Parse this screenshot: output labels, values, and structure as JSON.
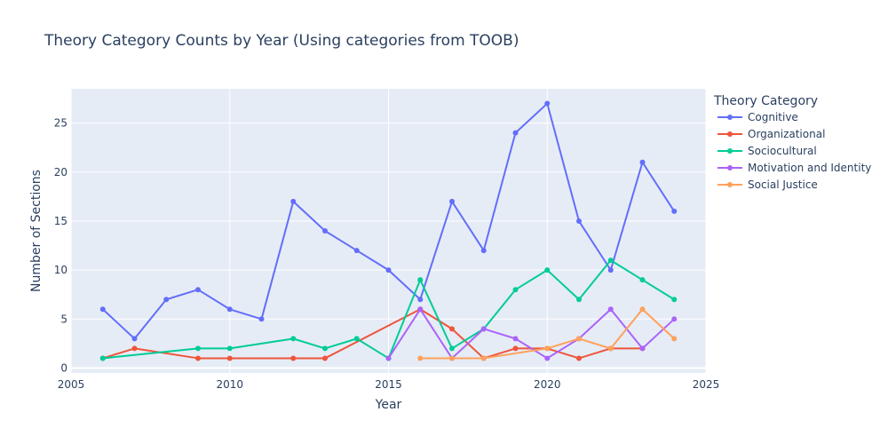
{
  "chart_data": {
    "type": "line",
    "title": "Theory Category Counts by Year (Using categories from TOOB)",
    "xlabel": "Year",
    "ylabel": "Number of Sections",
    "xlim": [
      2005,
      2025
    ],
    "ylim": [
      -0.5,
      28.5
    ],
    "xticks": [
      2005,
      2010,
      2015,
      2020,
      2025
    ],
    "yticks": [
      0,
      5,
      10,
      15,
      20,
      25
    ],
    "grid": true,
    "legend_title": "Theory Category",
    "legend_position": "right",
    "series": [
      {
        "name": "Cognitive",
        "color": "#636efa",
        "points": [
          [
            2006,
            6
          ],
          [
            2007,
            3
          ],
          [
            2008,
            7
          ],
          [
            2009,
            8
          ],
          [
            2010,
            6
          ],
          [
            2011,
            5
          ],
          [
            2012,
            17
          ],
          [
            2013,
            14
          ],
          [
            2014,
            12
          ],
          [
            2015,
            10
          ],
          [
            2016,
            7
          ],
          [
            2017,
            17
          ],
          [
            2018,
            12
          ],
          [
            2019,
            24
          ],
          [
            2020,
            27
          ],
          [
            2021,
            15
          ],
          [
            2022,
            10
          ],
          [
            2023,
            21
          ],
          [
            2024,
            16
          ]
        ]
      },
      {
        "name": "Organizational",
        "color": "#ef553b",
        "points": [
          [
            2006,
            1
          ],
          [
            2007,
            2
          ],
          [
            2009,
            1
          ],
          [
            2010,
            1
          ],
          [
            2012,
            1
          ],
          [
            2013,
            1
          ],
          [
            2016,
            6
          ],
          [
            2017,
            4
          ],
          [
            2018,
            1
          ],
          [
            2019,
            2
          ],
          [
            2020,
            2
          ],
          [
            2021,
            1
          ],
          [
            2022,
            2
          ],
          [
            2023,
            2
          ]
        ]
      },
      {
        "name": "Sociocultural",
        "color": "#00cc96",
        "points": [
          [
            2006,
            1
          ],
          [
            2009,
            2
          ],
          [
            2010,
            2
          ],
          [
            2012,
            3
          ],
          [
            2013,
            2
          ],
          [
            2014,
            3
          ],
          [
            2015,
            1
          ],
          [
            2016,
            9
          ],
          [
            2017,
            2
          ],
          [
            2018,
            4
          ],
          [
            2019,
            8
          ],
          [
            2020,
            10
          ],
          [
            2021,
            7
          ],
          [
            2022,
            11
          ],
          [
            2023,
            9
          ],
          [
            2024,
            7
          ]
        ]
      },
      {
        "name": "Motivation and Identity",
        "color": "#ab63fa",
        "points": [
          [
            2015,
            1
          ],
          [
            2016,
            6
          ],
          [
            2017,
            1
          ],
          [
            2018,
            4
          ],
          [
            2019,
            3
          ],
          [
            2020,
            1
          ],
          [
            2021,
            3
          ],
          [
            2022,
            6
          ],
          [
            2023,
            2
          ],
          [
            2024,
            5
          ]
        ]
      },
      {
        "name": "Social Justice",
        "color": "#ffa15a",
        "points": [
          [
            2016,
            1
          ],
          [
            2017,
            1
          ],
          [
            2018,
            1
          ],
          [
            2020,
            2
          ],
          [
            2021,
            3
          ],
          [
            2022,
            2
          ],
          [
            2023,
            6
          ],
          [
            2024,
            3
          ]
        ]
      }
    ]
  }
}
